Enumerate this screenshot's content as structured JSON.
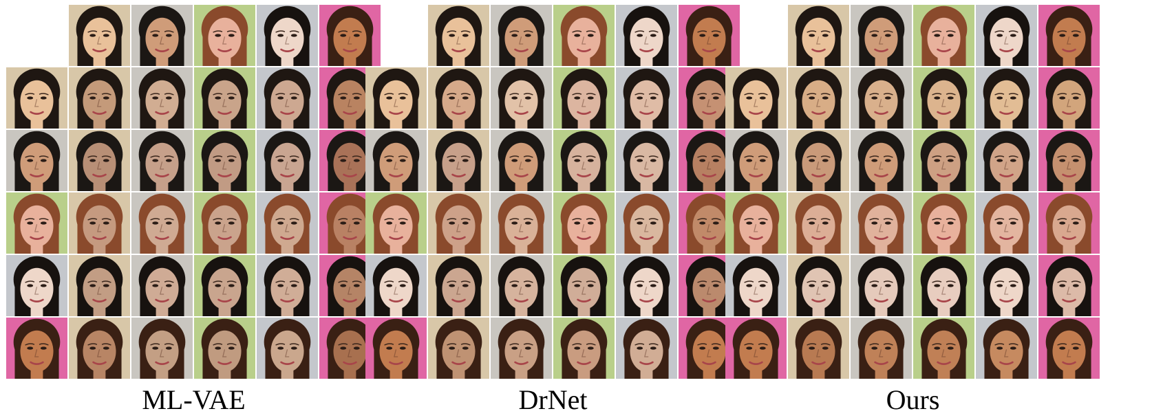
{
  "figure": {
    "panels": [
      {
        "caption": "ML-VAE",
        "subjects": [
          {
            "skin": "#e9c19a",
            "hair": "#1f1712",
            "bg": "#d8c7a8"
          },
          {
            "skin": "#cf9c79",
            "hair": "#1b1714",
            "bg": "#c9c6c0"
          },
          {
            "skin": "#e8b19c",
            "hair": "#8a4a2c",
            "bg": "#b9cf8a"
          },
          {
            "skin": "#eed7c9",
            "hair": "#17120f",
            "bg": "#c4c7cc"
          },
          {
            "skin": "#c27c4f",
            "hair": "#3a2014",
            "bg": "#e066a4"
          }
        ],
        "outputs": [
          [
            "#c49a7a",
            "#d1ad92",
            "#c9a48a",
            "#cda891",
            "#b98361"
          ],
          [
            "#b88f76",
            "#c6a08a",
            "#c19b84",
            "#c9a591",
            "#a97258"
          ],
          [
            "#c59a80",
            "#cfaa93",
            "#caa38c",
            "#cfa990",
            "#b98164"
          ],
          [
            "#c29d84",
            "#cfab95",
            "#c9a58e",
            "#d0ad97",
            "#b58466"
          ],
          [
            "#b88565",
            "#c39f84",
            "#c09b80",
            "#caa78d",
            "#a8704f"
          ]
        ]
      },
      {
        "caption": "DrNet",
        "subjects": [
          {
            "skin": "#e9c19a",
            "hair": "#1f1712",
            "bg": "#d8c7a8"
          },
          {
            "skin": "#cf9c79",
            "hair": "#1b1714",
            "bg": "#c9c6c0"
          },
          {
            "skin": "#e8b19c",
            "hair": "#8a4a2c",
            "bg": "#b9cf8a"
          },
          {
            "skin": "#eed7c9",
            "hair": "#17120f",
            "bg": "#c4c7cc"
          },
          {
            "skin": "#c27c4f",
            "hair": "#3a2014",
            "bg": "#e066a4"
          }
        ],
        "outputs": [
          [
            "#d6a98a",
            "#e2c2a8",
            "#dcb5a0",
            "#dfbca6",
            "#c59173"
          ],
          [
            "#c7a08a",
            "#cf9c79",
            "#d6b29d",
            "#d9b8a3",
            "#b78062"
          ],
          [
            "#cda189",
            "#d9b198",
            "#e8b19c",
            "#d9b79f",
            "#c18a69"
          ],
          [
            "#cba690",
            "#d6b39d",
            "#d0ad98",
            "#eed7c9",
            "#bb8a6d"
          ],
          [
            "#bf9273",
            "#c9a085",
            "#c99c80",
            "#d1ad95",
            "#c27c4f"
          ]
        ]
      },
      {
        "caption": "Ours",
        "subjects": [
          {
            "skin": "#e9c19a",
            "hair": "#1f1712",
            "bg": "#d8c7a8"
          },
          {
            "skin": "#cf9c79",
            "hair": "#1b1714",
            "bg": "#c9c6c0"
          },
          {
            "skin": "#e8b19c",
            "hair": "#8a4a2c",
            "bg": "#b9cf8a"
          },
          {
            "skin": "#eed7c9",
            "hair": "#17120f",
            "bg": "#c4c7cc"
          },
          {
            "skin": "#c27c4f",
            "hair": "#3a2014",
            "bg": "#e066a4"
          }
        ],
        "outputs": [
          [
            "#d8ad86",
            "#d9b08c",
            "#dcb48e",
            "#e2bd95",
            "#d2a57c"
          ],
          [
            "#c99a7a",
            "#cf9c79",
            "#cda083",
            "#d1a488",
            "#c5906f"
          ],
          [
            "#dcae96",
            "#e0b29c",
            "#e8b19c",
            "#e3b5a0",
            "#d9a88f"
          ],
          [
            "#e0c4b3",
            "#e5cabb",
            "#e8cdbf",
            "#eed7c9",
            "#dcbaa8"
          ],
          [
            "#b87a52",
            "#bf8158",
            "#c08056",
            "#c68a60",
            "#c27c4f"
          ]
        ]
      }
    ]
  }
}
